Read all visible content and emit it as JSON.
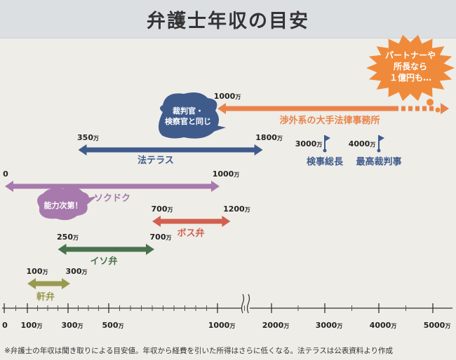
{
  "header": {
    "title": "弁護士年収の目安"
  },
  "footnote": "※弁護士の年収は聞き取りによる目安値。年収から経費を引いた所得はさらに低くなる。法テラスは公表資料より作成",
  "chart_data": {
    "type": "range-bar",
    "title": "弁護士年収の目安",
    "unit": "万",
    "axis": {
      "ticks": [
        {
          "value": 0,
          "label": "0",
          "unit": ""
        },
        {
          "value": 100,
          "label": "100",
          "unit": "万"
        },
        {
          "value": 300,
          "label": "300",
          "unit": "万"
        },
        {
          "value": 500,
          "label": "500",
          "unit": "万"
        },
        {
          "value": 1000,
          "label": "1000",
          "unit": "万"
        },
        {
          "value": 2000,
          "label": "2000",
          "unit": "万"
        },
        {
          "value": 3000,
          "label": "3000",
          "unit": "万"
        },
        {
          "value": 4000,
          "label": "4000",
          "unit": "万"
        },
        {
          "value": 5000,
          "label": "5000",
          "unit": "万"
        }
      ],
      "break_between": [
        1000,
        2000
      ]
    },
    "series": [
      {
        "name": "渉外系の大手法律事務所",
        "min": 1000,
        "max": 5000,
        "open_ended": true,
        "color": "#ea8349",
        "min_label": "1000",
        "max_label": ""
      },
      {
        "name": "法テラス",
        "min": 350,
        "max": 1800,
        "color": "#3f5b8c",
        "min_label": "350",
        "max_label": "1800"
      },
      {
        "name": "ソクドク",
        "min": 0,
        "max": 1000,
        "color": "#a779ad",
        "min_label": "0",
        "max_label": "1000"
      },
      {
        "name": "ボス弁",
        "min": 700,
        "max": 1200,
        "color": "#d2604f",
        "min_label": "700",
        "max_label": "1200"
      },
      {
        "name": "イソ弁",
        "min": 250,
        "max": 700,
        "color": "#48724d",
        "min_label": "250",
        "max_label": "700"
      },
      {
        "name": "軒弁",
        "min": 100,
        "max": 300,
        "color": "#999a4f",
        "min_label": "100",
        "max_label": "300"
      }
    ],
    "markers": [
      {
        "name": "検事総長",
        "value": 3000,
        "label": "3000",
        "color": "#3f5b8c"
      },
      {
        "name": "最高裁判事",
        "value": 4000,
        "label": "4000",
        "color": "#3f5b8c"
      }
    ],
    "callouts": [
      {
        "name": "partner",
        "lines": [
          "パートナーや",
          "所長なら",
          "１億円も…"
        ],
        "color": "#f08a3b"
      },
      {
        "name": "judge-prosecutor",
        "lines": [
          "裁判官・",
          "検察官と同じ"
        ],
        "color": "#3f5b8c"
      },
      {
        "name": "skill",
        "lines": [
          "能力次第！"
        ],
        "color": "#a779ad"
      }
    ]
  }
}
